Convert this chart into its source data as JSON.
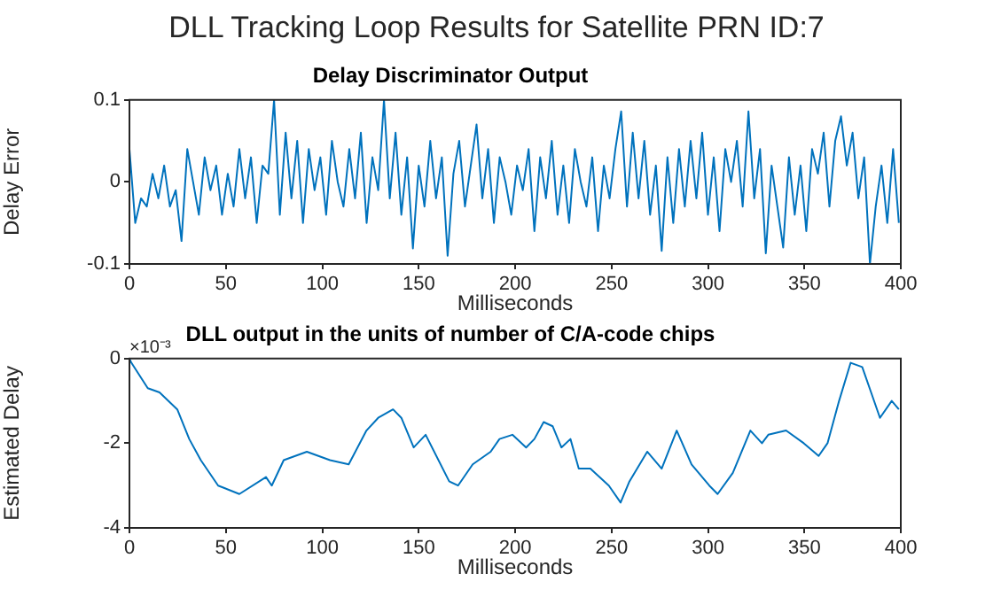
{
  "chart_data": [
    {
      "type": "line",
      "title": "DLL Tracking Loop Results for Satellite PRN ID:7",
      "subtitle": "Delay Discriminator Output",
      "xlabel": "Milliseconds",
      "ylabel": "Delay Error",
      "x": [
        0,
        3,
        6,
        9,
        12,
        15,
        18,
        21,
        24,
        27,
        30,
        33,
        36,
        39,
        42,
        45,
        48,
        51,
        54,
        57,
        60,
        63,
        66,
        69,
        72,
        75,
        78,
        81,
        84,
        87,
        90,
        93,
        96,
        99,
        102,
        105,
        108,
        111,
        114,
        117,
        120,
        123,
        126,
        129,
        132,
        135,
        138,
        141,
        144,
        147,
        150,
        153,
        156,
        159,
        162,
        165,
        168,
        171,
        174,
        177,
        180,
        183,
        186,
        189,
        192,
        195,
        198,
        201,
        204,
        207,
        210,
        213,
        216,
        219,
        222,
        225,
        228,
        231,
        234,
        237,
        240,
        243,
        246,
        249,
        252,
        255,
        258,
        261,
        264,
        267,
        270,
        273,
        276,
        279,
        282,
        285,
        288,
        291,
        294,
        297,
        300,
        303,
        306,
        309,
        312,
        315,
        318,
        321,
        324,
        327,
        330,
        333,
        336,
        339,
        342,
        345,
        348,
        351,
        354,
        357,
        360,
        363,
        366,
        369,
        372,
        375,
        378,
        381,
        384,
        387,
        390,
        393,
        396,
        399
      ],
      "series": [
        {
          "color": "#0072bd",
          "values": [
            0.04,
            -0.05,
            -0.02,
            -0.03,
            0.01,
            -0.02,
            0.02,
            -0.03,
            -0.01,
            -0.072,
            0.04,
            0.0,
            -0.04,
            0.03,
            -0.01,
            0.02,
            -0.04,
            0.01,
            -0.03,
            0.04,
            -0.02,
            0.03,
            -0.05,
            0.02,
            0.01,
            0.1,
            -0.04,
            0.06,
            -0.02,
            0.05,
            -0.05,
            0.04,
            -0.01,
            0.03,
            -0.04,
            0.05,
            0.0,
            -0.03,
            0.04,
            -0.02,
            0.06,
            -0.05,
            0.03,
            -0.01,
            0.1,
            -0.02,
            0.06,
            -0.04,
            0.03,
            -0.081,
            0.02,
            -0.03,
            0.05,
            -0.02,
            0.03,
            -0.09,
            0.01,
            0.05,
            -0.03,
            0.02,
            0.07,
            -0.02,
            0.04,
            -0.05,
            0.03,
            0.0,
            -0.04,
            0.02,
            -0.01,
            0.04,
            -0.06,
            0.03,
            -0.02,
            0.05,
            -0.04,
            0.02,
            -0.05,
            0.04,
            0.0,
            -0.03,
            0.03,
            -0.06,
            0.02,
            -0.02,
            0.04,
            0.086,
            -0.03,
            0.06,
            -0.02,
            0.05,
            -0.04,
            0.02,
            -0.084,
            0.03,
            -0.05,
            0.04,
            -0.03,
            0.05,
            -0.02,
            0.06,
            -0.04,
            0.03,
            -0.06,
            0.04,
            0.0,
            0.05,
            -0.03,
            0.086,
            -0.02,
            0.04,
            -0.087,
            0.02,
            -0.03,
            -0.08,
            0.03,
            -0.04,
            0.02,
            -0.06,
            0.04,
            0.01,
            0.06,
            -0.03,
            0.05,
            0.08,
            0.02,
            0.06,
            -0.02,
            0.03,
            -0.1,
            -0.03,
            0.02,
            -0.05,
            0.04,
            -0.05
          ]
        }
      ],
      "xlim": [
        0,
        400
      ],
      "xticks": [
        0,
        50,
        100,
        150,
        200,
        250,
        300,
        350,
        400
      ],
      "ylim": [
        -0.1,
        0.1
      ],
      "yticks": [
        -0.1,
        0,
        0.1
      ],
      "grid": false
    },
    {
      "type": "line",
      "title": "DLL output in the units of number of C/A-code chips",
      "xlabel": "Milliseconds",
      "ylabel": "Estimated Delay",
      "annotations": [
        "×10⁻³"
      ],
      "x": [
        0,
        1,
        9.5,
        15.6,
        24.8,
        31,
        37,
        46,
        57,
        70.8,
        73.8,
        80,
        92,
        104,
        113.7,
        122.9,
        129,
        136.7,
        141,
        147.4,
        153.6,
        165.8,
        170.4,
        178,
        187.3,
        191.9,
        198.6,
        205.7,
        210,
        214.8,
        219.5,
        224,
        228.7,
        233,
        239,
        248.6,
        254.7,
        259.3,
        268.5,
        276,
        283.8,
        291.5,
        300.7,
        305,
        312.9,
        322,
        328,
        331.3,
        340.5,
        349.7,
        357.4,
        362,
        368,
        374,
        380,
        384.6,
        389.2,
        395.3,
        399
      ],
      "series": [
        {
          "color": "#0072bd",
          "values": [
            0,
            -0.1,
            -0.7,
            -0.8,
            -1.2,
            -1.9,
            -2.4,
            -3.0,
            -3.2,
            -2.8,
            -3.0,
            -2.4,
            -2.2,
            -2.4,
            -2.5,
            -1.7,
            -1.4,
            -1.2,
            -1.4,
            -2.1,
            -1.8,
            -2.9,
            -3.0,
            -2.5,
            -2.2,
            -1.9,
            -1.8,
            -2.1,
            -1.9,
            -1.5,
            -1.6,
            -2.1,
            -1.9,
            -2.6,
            -2.6,
            -3.0,
            -3.4,
            -2.9,
            -2.2,
            -2.6,
            -1.7,
            -2.5,
            -3.0,
            -3.2,
            -2.7,
            -1.7,
            -2.0,
            -1.8,
            -1.7,
            -2.0,
            -2.3,
            -2.0,
            -1.0,
            -0.1,
            -0.2,
            -0.8,
            -1.4,
            -1.0,
            -1.2
          ]
        }
      ],
      "xlim": [
        0,
        400
      ],
      "xticks": [
        0,
        50,
        100,
        150,
        200,
        250,
        300,
        350,
        400
      ],
      "ylim": [
        -4,
        0
      ],
      "yticks": [
        -4,
        -2,
        0
      ],
      "grid": false
    }
  ]
}
